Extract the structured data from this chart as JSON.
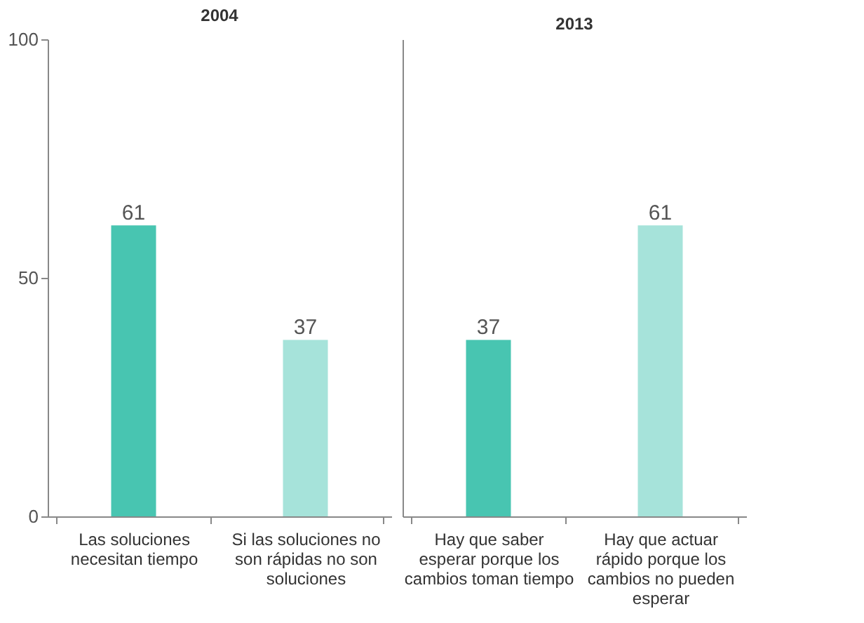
{
  "chart_data": [
    {
      "type": "bar",
      "title": "2004",
      "categories": [
        "Las soluciones necesitan tiempo",
        "Si las soluciones no son rápidas no son soluciones"
      ],
      "values": [
        61,
        37
      ],
      "colors": [
        "#48c5b1",
        "#a6e3da"
      ],
      "ylim": [
        0,
        100
      ],
      "yticks": [
        0,
        50,
        100
      ],
      "data_labels": true,
      "grid": false
    },
    {
      "type": "bar",
      "title": "2013",
      "categories": [
        "Hay que saber esperar porque los cambios toman tiempo",
        "Hay que actuar rápido porque los cambios no pueden esperar"
      ],
      "values": [
        37,
        61
      ],
      "colors": [
        "#48c5b1",
        "#a6e3da"
      ],
      "ylim": [
        0,
        100
      ],
      "yticks": [
        0,
        50,
        100
      ],
      "data_labels": true,
      "grid": false,
      "tick_labels": "x"
    }
  ]
}
